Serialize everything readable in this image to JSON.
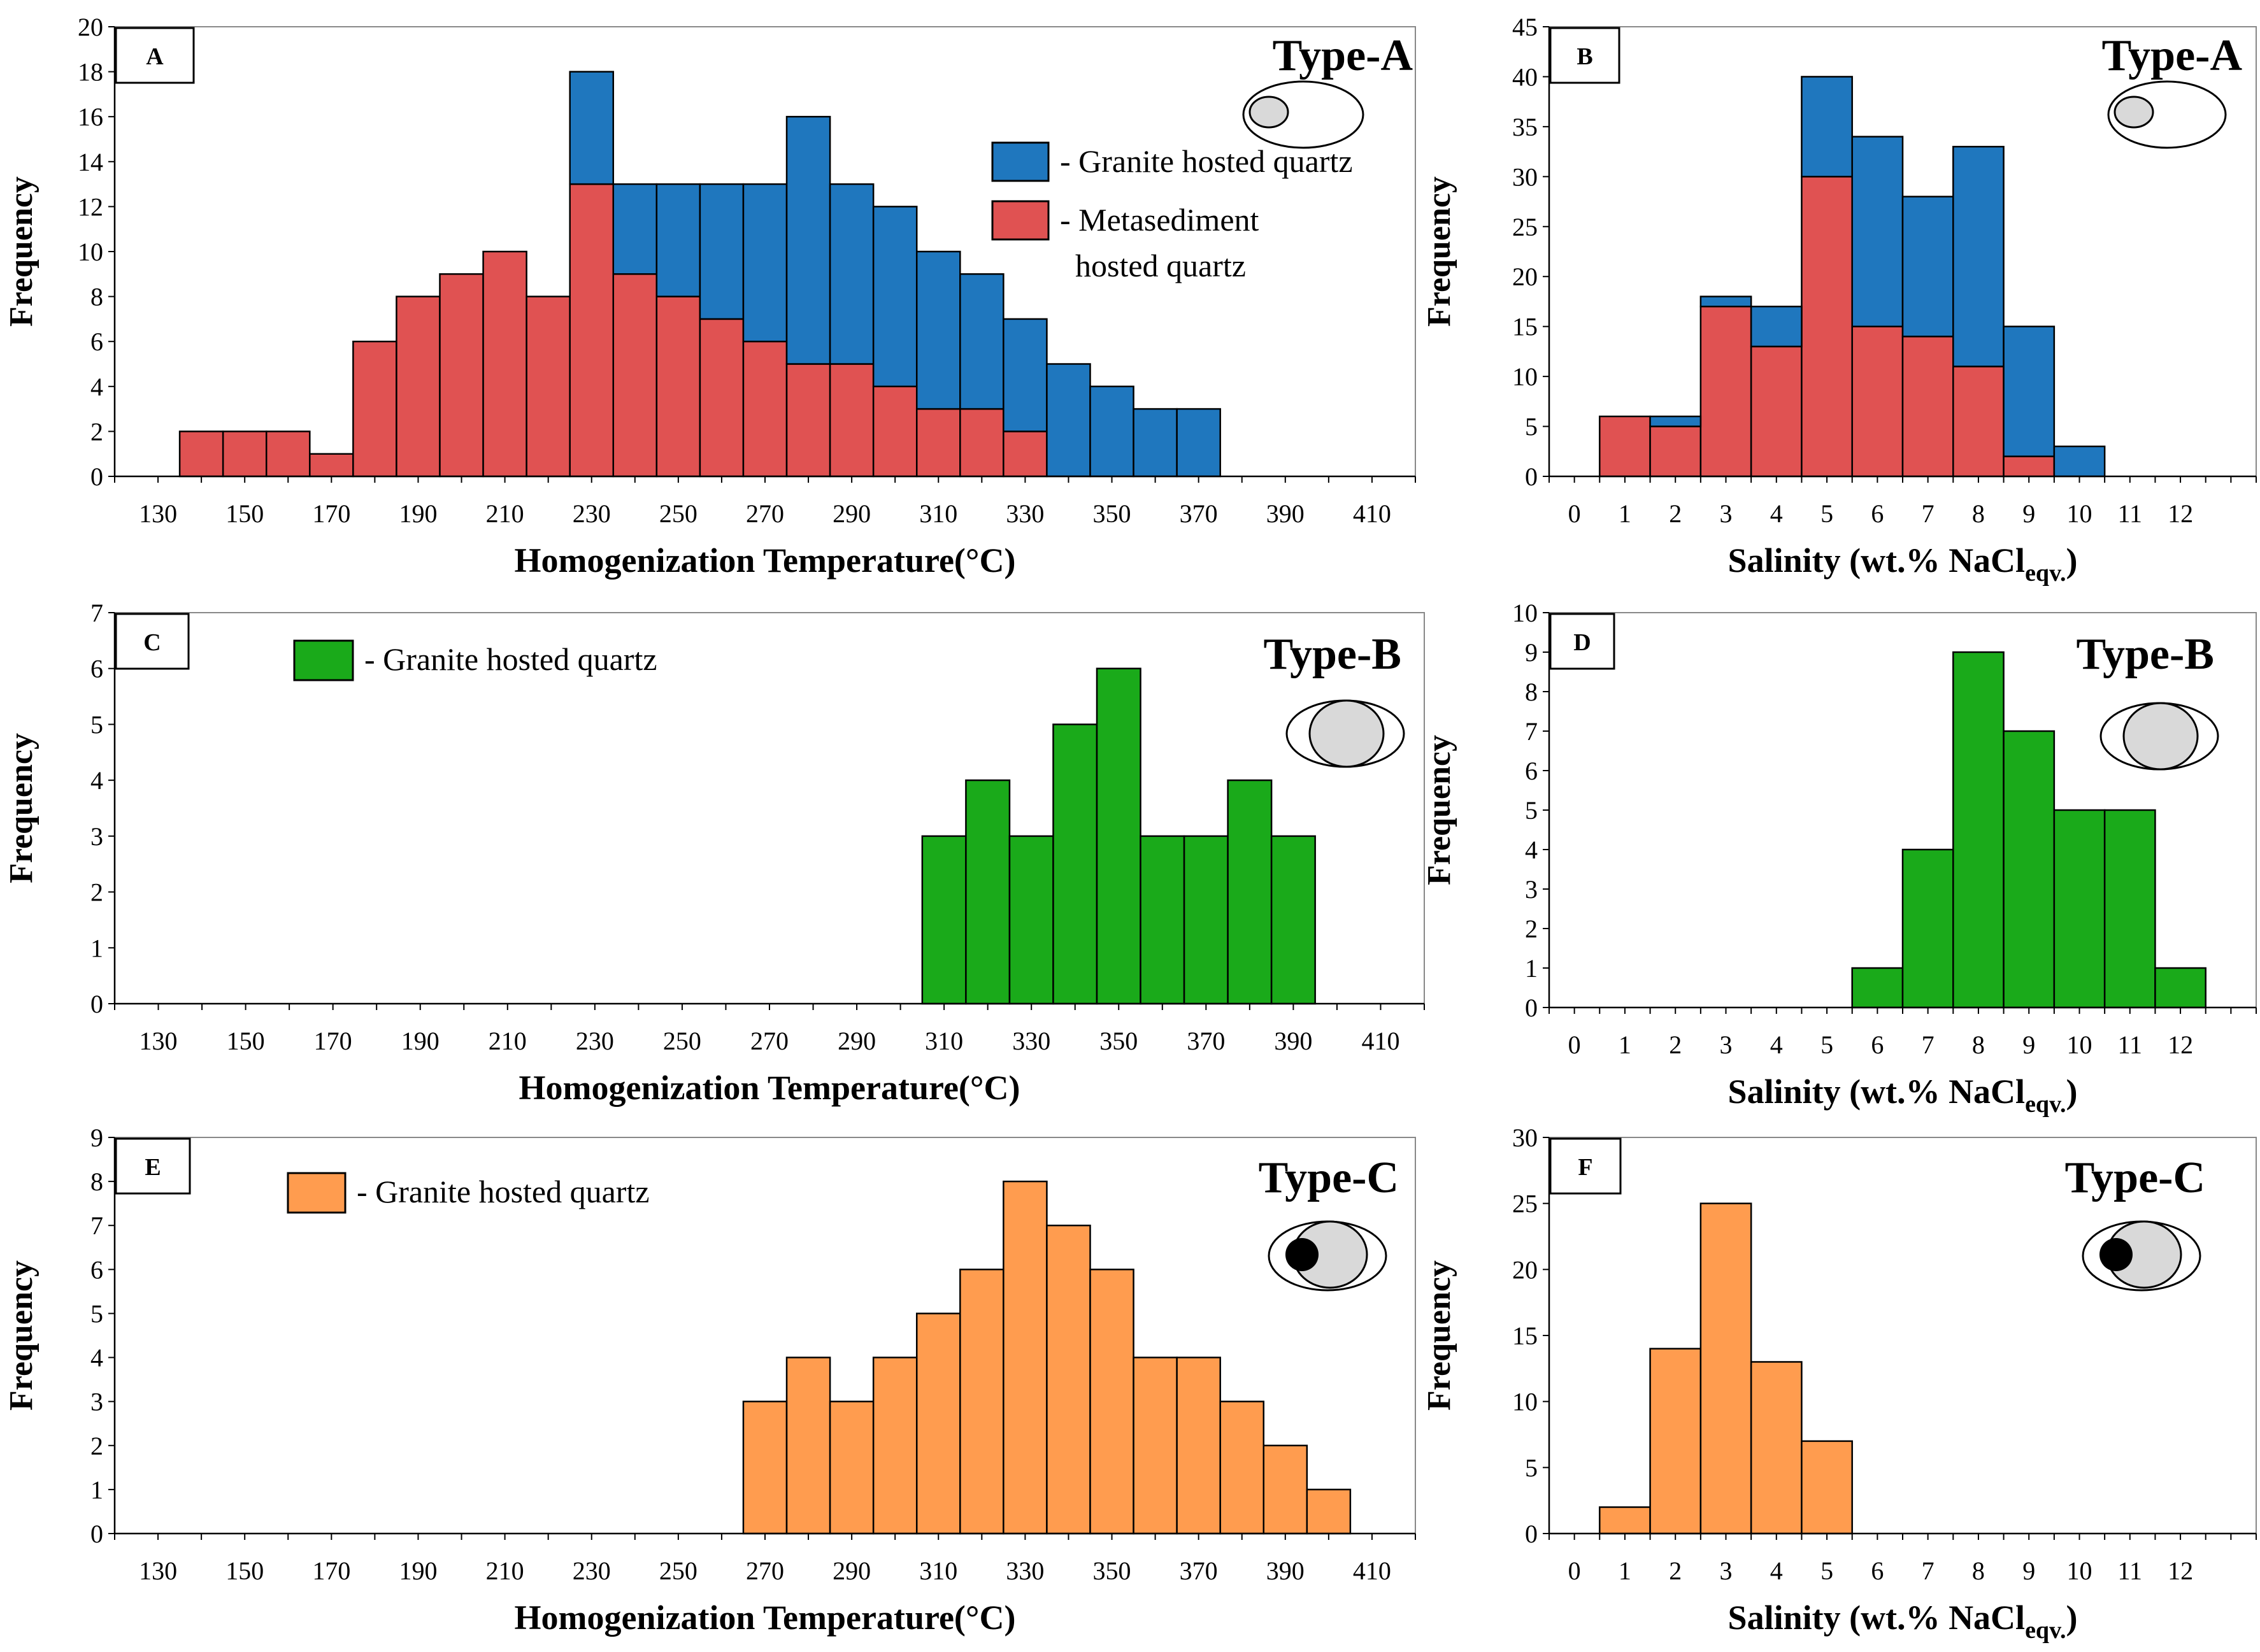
{
  "chart_data": [
    {
      "panel": "A",
      "type": "bar",
      "stacked": true,
      "type_label": "Type-A",
      "xlabel": "Homogenization Temperature(°C)",
      "ylabel": "Frequency",
      "bin_start": 135,
      "bin_width": 10,
      "xlim": [
        120,
        420
      ],
      "ylim": [
        0,
        20
      ],
      "ytick_step": 2,
      "xticks": [
        130,
        150,
        170,
        190,
        210,
        230,
        250,
        270,
        290,
        310,
        330,
        350,
        370,
        390,
        410
      ],
      "series": [
        {
          "name": "Metasediment hosted quartz",
          "legend": [
            "- Metasediment",
            "hosted quartz"
          ],
          "color": "#E05252",
          "values": [
            2,
            2,
            2,
            1,
            6,
            8,
            9,
            10,
            8,
            13,
            9,
            8,
            7,
            6,
            5,
            5,
            4,
            3,
            3,
            2,
            0,
            0,
            0,
            0
          ]
        },
        {
          "name": "Granite hosted quartz",
          "legend": [
            "- Granite hosted quartz"
          ],
          "color": "#1F77BE",
          "values": [
            0,
            0,
            0,
            0,
            0,
            0,
            0,
            0,
            0,
            5,
            4,
            5,
            6,
            7,
            11,
            8,
            8,
            7,
            6,
            5,
            5,
            4,
            3,
            3
          ]
        }
      ]
    },
    {
      "panel": "B",
      "type": "bar",
      "stacked": true,
      "type_label": "Type-A",
      "xlabel": "Salinity (wt.% NaCl",
      "xlabel_sub": "eqv.",
      "xlabel_end": ")",
      "ylabel": "Frequency",
      "bin_start": 0.5,
      "bin_width": 1,
      "xlim": [
        -0.5,
        13.5
      ],
      "ylim": [
        0,
        45
      ],
      "ytick_step": 5,
      "xticks": [
        0,
        1,
        2,
        3,
        4,
        5,
        6,
        7,
        8,
        9,
        10,
        11,
        12
      ],
      "series": [
        {
          "name": "Metasediment hosted quartz",
          "color": "#E05252",
          "values": [
            6,
            5,
            17,
            13,
            30,
            15,
            14,
            11,
            2,
            0
          ]
        },
        {
          "name": "Granite hosted quartz",
          "color": "#1F77BE",
          "values": [
            0,
            1,
            1,
            4,
            10,
            19,
            14,
            22,
            13,
            3
          ]
        }
      ]
    },
    {
      "panel": "C",
      "type": "bar",
      "stacked": false,
      "type_label": "Type-B",
      "xlabel": "Homogenization Temperature(°C)",
      "ylabel": "Frequency",
      "bin_start": 305,
      "bin_width": 10,
      "xlim": [
        120,
        420
      ],
      "ylim": [
        0,
        7
      ],
      "ytick_step": 1,
      "xticks": [
        130,
        150,
        170,
        190,
        210,
        230,
        250,
        270,
        290,
        310,
        330,
        350,
        370,
        390,
        410
      ],
      "series": [
        {
          "name": "Granite hosted quartz",
          "legend": [
            "- Granite hosted quartz"
          ],
          "color": "#1AAA1A",
          "values": [
            3,
            4,
            3,
            5,
            6,
            3,
            3,
            4,
            3
          ]
        }
      ]
    },
    {
      "panel": "D",
      "type": "bar",
      "stacked": false,
      "type_label": "Type-B",
      "xlabel": "Salinity (wt.% NaCl",
      "xlabel_sub": "eqv.",
      "xlabel_end": ")",
      "ylabel": "Frequency",
      "bin_start": 5.5,
      "bin_width": 1,
      "xlim": [
        -0.5,
        13.5
      ],
      "ylim": [
        0,
        10
      ],
      "ytick_step": 1,
      "xticks": [
        0,
        1,
        2,
        3,
        4,
        5,
        6,
        7,
        8,
        9,
        10,
        11,
        12
      ],
      "series": [
        {
          "name": "Granite hosted quartz",
          "color": "#1AAA1A",
          "values": [
            1,
            4,
            9,
            7,
            5,
            5,
            1
          ]
        }
      ]
    },
    {
      "panel": "E",
      "type": "bar",
      "stacked": false,
      "type_label": "Type-C",
      "xlabel": "Homogenization Temperature(°C)",
      "ylabel": "Frequency",
      "bin_start": 265,
      "bin_width": 10,
      "xlim": [
        120,
        420
      ],
      "ylim": [
        0,
        9
      ],
      "ytick_step": 1,
      "xticks": [
        130,
        150,
        170,
        190,
        210,
        230,
        250,
        270,
        290,
        310,
        330,
        350,
        370,
        390,
        410
      ],
      "series": [
        {
          "name": "Granite hosted quartz",
          "legend": [
            "- Granite hosted quartz"
          ],
          "color": "#FF9C4F",
          "values": [
            3,
            4,
            3,
            4,
            5,
            6,
            8,
            7,
            6,
            4,
            4,
            3,
            2,
            1
          ]
        }
      ]
    },
    {
      "panel": "F",
      "type": "bar",
      "stacked": false,
      "type_label": "Type-C",
      "xlabel": "Salinity (wt.% NaCl",
      "xlabel_sub": "eqv.",
      "xlabel_end": ")",
      "ylabel": "Frequency",
      "bin_start": 0.5,
      "bin_width": 1,
      "xlim": [
        -0.5,
        13.5
      ],
      "ylim": [
        0,
        30
      ],
      "ytick_step": 5,
      "xticks": [
        0,
        1,
        2,
        3,
        4,
        5,
        6,
        7,
        8,
        9,
        10,
        11,
        12
      ],
      "series": [
        {
          "name": "Granite hosted quartz",
          "color": "#FF9C4F",
          "values": [
            2,
            14,
            25,
            13,
            7
          ]
        }
      ]
    }
  ]
}
